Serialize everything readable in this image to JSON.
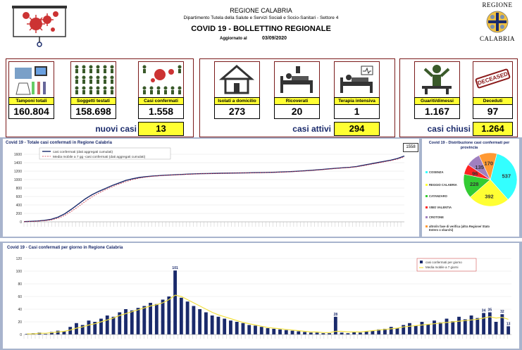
{
  "header": {
    "region": "REGIONE CALABRIA",
    "department": "Dipartimento Tutela della Salute e Servizi Sociali e Socio-Sanitari - Settore 4",
    "title": "COVID 19 - BOLLETTINO REGIONALE",
    "updated_label": "Aggiornato al",
    "updated_date": "03/09/2020",
    "logo_top": "REGIONE",
    "logo_bottom": "CALABRIA"
  },
  "stats": {
    "tamponi": {
      "label": "Tamponi totali",
      "value": "160.804"
    },
    "soggetti": {
      "label": "Soggetti testati",
      "value": "158.698"
    },
    "confermati": {
      "label": "Casi confermati",
      "value": "1.558"
    },
    "isolati": {
      "label": "Isolati a domicilio",
      "value": "273"
    },
    "ricoverati": {
      "label": "Ricoverati",
      "value": "20"
    },
    "terapia": {
      "label": "Terapia intensiva",
      "value": "1"
    },
    "guariti": {
      "label": "Guariti/dimessi",
      "value": "1.167"
    },
    "deceduti": {
      "label": "Deceduti",
      "value": "97"
    },
    "deceased_stamp": "DECEASED"
  },
  "summary": {
    "nuovi_label": "nuovi casi",
    "nuovi_value": "13",
    "attivi_label": "casi attivi",
    "attivi_value": "294",
    "chiusi_label": "casi chiusi",
    "chiusi_value": "1.264"
  },
  "colors": {
    "navy": "#1a2a6b",
    "yellow": "#ffff33",
    "accent_red": "#8b1a1a"
  },
  "chart_data": [
    {
      "type": "line",
      "title": "Covid 19 - Totale casi confermati in Regione Calabria",
      "legend": [
        "casi confermati (dati aggregati cumulati)",
        "Media mobile a 7 gg -casi confermati (dati aggregati cumulati)"
      ],
      "legend_position": "top-left",
      "ylim": [
        0,
        1600
      ],
      "yticks": [
        0,
        200,
        400,
        600,
        800,
        1000,
        1200,
        1400,
        1600
      ],
      "end_label": "1558",
      "series": [
        {
          "name": "casi confermati (dati aggregati cumulati)",
          "values": [
            5,
            12,
            20,
            35,
            60,
            110,
            190,
            300,
            420,
            540,
            640,
            720,
            790,
            860,
            920,
            980,
            1020,
            1050,
            1070,
            1085,
            1095,
            1105,
            1112,
            1120,
            1128,
            1135,
            1140,
            1142,
            1146,
            1150,
            1152,
            1155,
            1158,
            1160,
            1163,
            1166,
            1170,
            1174,
            1180,
            1186,
            1194,
            1205,
            1215,
            1228,
            1240,
            1255,
            1268,
            1280,
            1290,
            1310,
            1340,
            1370,
            1400,
            1430,
            1460,
            1500,
            1558
          ]
        },
        {
          "name": "Media mobile a 7 gg -casi confermati (dati aggregati cumulati)",
          "values": [
            2,
            8,
            15,
            25,
            45,
            85,
            150,
            250,
            360,
            480,
            590,
            680,
            760,
            830,
            895,
            950,
            1000,
            1035,
            1060,
            1078,
            1090,
            1100,
            1108,
            1116,
            1124,
            1131,
            1137,
            1140,
            1144,
            1148,
            1150,
            1153,
            1156,
            1158,
            1161,
            1164,
            1167,
            1171,
            1177,
            1183,
            1190,
            1200,
            1210,
            1222,
            1234,
            1248,
            1262,
            1274,
            1285,
            1302,
            1328,
            1358,
            1388,
            1418,
            1448,
            1484,
            1535
          ]
        }
      ]
    },
    {
      "type": "pie",
      "title": "Covid 19 - Distribuzione casi confermati per provincia",
      "legend_position": "left",
      "slices": [
        {
          "name": "COSENZA",
          "value": 537,
          "color": "#33ffff"
        },
        {
          "name": "REGGIO CALABRIA",
          "value": 392,
          "color": "#ffff33"
        },
        {
          "name": "CATANZARO",
          "value": 228,
          "color": "#33cc33"
        },
        {
          "name": "VIBO VALENTIA",
          "value": 96,
          "color": "#ff2222"
        },
        {
          "name": "CROTONE",
          "value": 135,
          "color": "#a080c0"
        },
        {
          "name": "altro/in fase di verifica (altra Regione/ Stato Estero o sbarchi)",
          "value": 170,
          "color": "#ff9933"
        }
      ]
    },
    {
      "type": "bar",
      "title": "Covid 19 - Casi confermati per giorno in Regione Calabria",
      "legend": [
        "casi confermati per giorno",
        "Media mobile a 7 giorni"
      ],
      "legend_position": "top-right",
      "ylim": [
        0,
        120
      ],
      "yticks": [
        0,
        20,
        40,
        60,
        80,
        100,
        120
      ],
      "values": [
        1,
        2,
        3,
        1,
        4,
        6,
        5,
        12,
        18,
        15,
        22,
        20,
        25,
        30,
        28,
        35,
        40,
        38,
        42,
        45,
        50,
        48,
        55,
        60,
        101,
        58,
        52,
        45,
        40,
        35,
        30,
        28,
        25,
        22,
        20,
        18,
        15,
        14,
        12,
        10,
        9,
        8,
        7,
        6,
        5,
        4,
        3,
        3,
        2,
        2,
        28,
        3,
        2,
        4,
        3,
        5,
        6,
        8,
        9,
        12,
        10,
        15,
        18,
        14,
        20,
        16,
        22,
        19,
        25,
        21,
        28,
        24,
        30,
        26,
        34,
        35,
        20,
        32,
        13
      ],
      "moving_avg": [
        1,
        1,
        2,
        2,
        3,
        4,
        5,
        7,
        10,
        12,
        15,
        17,
        20,
        23,
        26,
        30,
        33,
        36,
        39,
        42,
        45,
        47,
        50,
        55,
        62,
        60,
        55,
        50,
        45,
        40,
        35,
        31,
        28,
        25,
        22,
        19,
        17,
        15,
        13,
        11,
        10,
        9,
        8,
        7,
        6,
        5,
        4,
        4,
        3,
        3,
        5,
        5,
        4,
        4,
        4,
        5,
        6,
        7,
        8,
        9,
        10,
        12,
        13,
        14,
        15,
        16,
        17,
        18,
        19,
        20,
        21,
        22,
        23,
        24,
        26,
        28,
        26,
        27,
        24
      ],
      "data_labels": {
        "24": "101",
        "50": "28",
        "74": "34",
        "75": "35",
        "77": "32",
        "78": "13"
      }
    }
  ]
}
